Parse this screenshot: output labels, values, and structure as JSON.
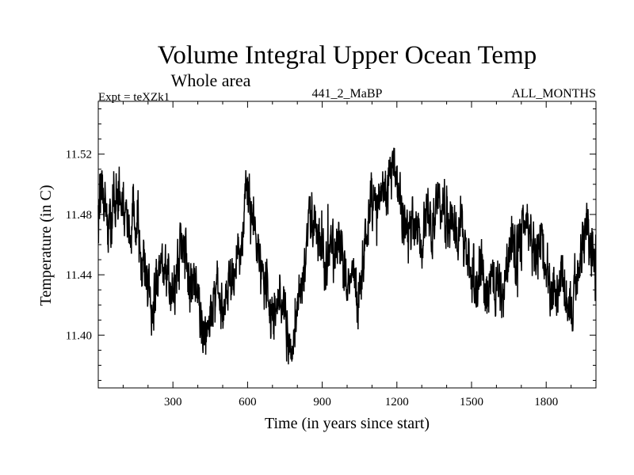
{
  "chart_data": {
    "type": "line",
    "title": "Volume Integral Upper Ocean Temp",
    "subtitle": "Whole area",
    "expt_label": "Expt = teXZk1",
    "center_label": "441_2_MaBP",
    "right_label": "ALL_MONTHS",
    "xlabel": "Time (in years since start)",
    "ylabel": "Temperature (in C)",
    "xlim": [
      0,
      2000
    ],
    "ylim": [
      11.365,
      11.555
    ],
    "x_ticks": [
      300,
      600,
      900,
      1200,
      1500,
      1800
    ],
    "x_tick_labels": [
      "300",
      "600",
      "900",
      "1200",
      "1500",
      "1800"
    ],
    "y_ticks": [
      11.4,
      11.44,
      11.48,
      11.52
    ],
    "y_tick_labels": [
      "11.40",
      "11.44",
      "11.48",
      "11.52"
    ],
    "grid": false,
    "series": [
      {
        "name": "teXZk1",
        "color": "#000000",
        "x": [
          0,
          20,
          40,
          60,
          80,
          100,
          120,
          140,
          160,
          180,
          200,
          220,
          240,
          260,
          280,
          300,
          320,
          340,
          360,
          380,
          400,
          420,
          440,
          460,
          480,
          500,
          520,
          540,
          560,
          580,
          600,
          620,
          640,
          660,
          680,
          700,
          720,
          740,
          760,
          780,
          800,
          820,
          840,
          860,
          880,
          900,
          920,
          940,
          960,
          980,
          1000,
          1020,
          1040,
          1060,
          1080,
          1100,
          1120,
          1140,
          1160,
          1180,
          1200,
          1220,
          1240,
          1260,
          1280,
          1300,
          1320,
          1340,
          1360,
          1380,
          1400,
          1420,
          1440,
          1460,
          1480,
          1500,
          1520,
          1540,
          1560,
          1580,
          1600,
          1620,
          1640,
          1660,
          1680,
          1700,
          1720,
          1740,
          1760,
          1780,
          1800,
          1820,
          1840,
          1860,
          1880,
          1900,
          1920,
          1940,
          1960,
          1980,
          2000
        ],
        "y": [
          11.49,
          11.5,
          11.47,
          11.48,
          11.5,
          11.49,
          11.47,
          11.48,
          11.47,
          11.44,
          11.43,
          11.42,
          11.44,
          11.45,
          11.44,
          11.42,
          11.45,
          11.46,
          11.44,
          11.43,
          11.42,
          11.4,
          11.41,
          11.42,
          11.43,
          11.41,
          11.43,
          11.44,
          11.45,
          11.47,
          11.5,
          11.48,
          11.46,
          11.44,
          11.43,
          11.41,
          11.42,
          11.43,
          11.4,
          11.39,
          11.42,
          11.44,
          11.46,
          11.48,
          11.47,
          11.45,
          11.44,
          11.46,
          11.47,
          11.45,
          11.43,
          11.44,
          11.42,
          11.44,
          11.47,
          11.49,
          11.48,
          11.5,
          11.49,
          11.51,
          11.5,
          11.48,
          11.47,
          11.48,
          11.47,
          11.46,
          11.48,
          11.47,
          11.49,
          11.48,
          11.47,
          11.48,
          11.46,
          11.47,
          11.46,
          11.44,
          11.43,
          11.45,
          11.42,
          11.44,
          11.43,
          11.42,
          11.44,
          11.46,
          11.45,
          11.47,
          11.48,
          11.46,
          11.45,
          11.47,
          11.44,
          11.43,
          11.42,
          11.44,
          11.43,
          11.42,
          11.43,
          11.46,
          11.47,
          11.46,
          11.45
        ],
        "noise_amplitude": 0.016,
        "samples_per_year": 1
      }
    ]
  }
}
